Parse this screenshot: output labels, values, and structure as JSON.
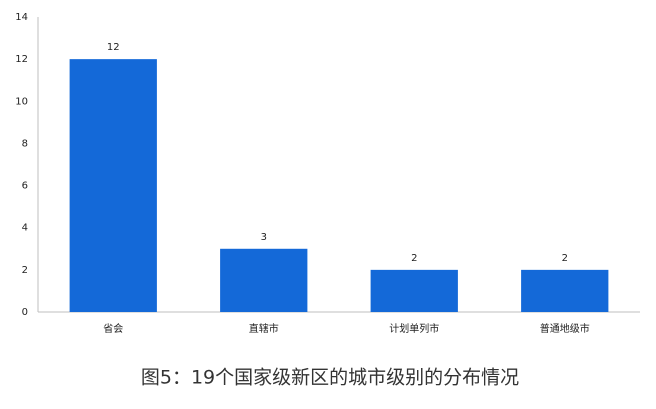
{
  "chart_data": {
    "type": "bar",
    "title": "图5：19个国家级新区的城市级别的分布情况",
    "categories": [
      "省会",
      "直辖市",
      "计划单列市",
      "普通地级市"
    ],
    "values": [
      12,
      3,
      2,
      2
    ],
    "color": "#1469d8",
    "ylim": [
      0,
      14
    ],
    "yticks": [
      0,
      2,
      4,
      6,
      8,
      10,
      12,
      14
    ],
    "grid": false
  }
}
